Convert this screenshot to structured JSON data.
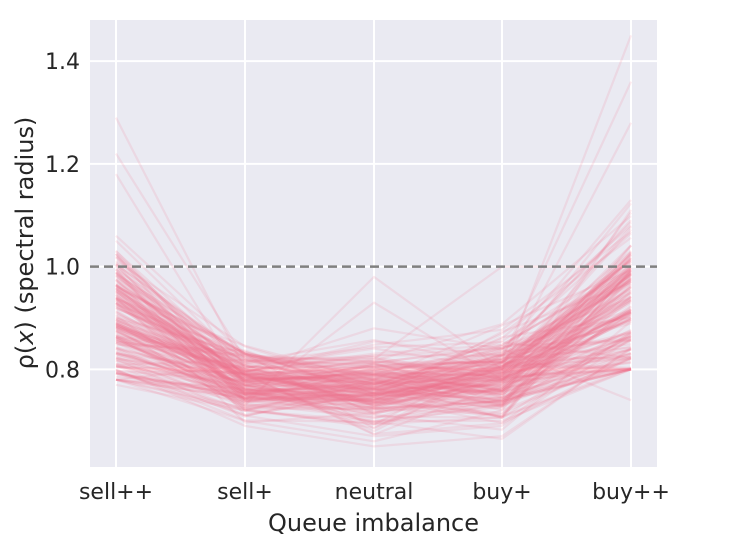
{
  "chart_data": {
    "type": "line",
    "title": "",
    "xlabel": "Queue imbalance",
    "ylabel_pre": "ρ(",
    "ylabel_var": "x",
    "ylabel_post": ") (spectral radius)",
    "categories": [
      "sell++",
      "sell+",
      "neutral",
      "buy+",
      "buy++"
    ],
    "ylim": [
      0.61,
      1.48
    ],
    "yticks": [
      0.8,
      1.0,
      1.2,
      1.4
    ],
    "ytick_labels": [
      "0.8",
      "1.0",
      "1.2",
      "1.4"
    ],
    "reference_line": {
      "y": 1.0,
      "style": "dashed",
      "color": "#808080"
    },
    "grid": true,
    "background_color": "#eaeaf2",
    "line_color": "#f0748f",
    "line_opacity": 0.15,
    "series_count": 200,
    "series_typical": {
      "sell++": 0.9,
      "sell+": 0.78,
      "neutral": 0.76,
      "buy+": 0.78,
      "buy++": 0.93
    },
    "series_extremes": [
      [
        1.29,
        0.8,
        0.78,
        0.8,
        1.45
      ],
      [
        1.22,
        0.82,
        0.8,
        0.82,
        1.36
      ],
      [
        1.18,
        0.77,
        0.8,
        0.8,
        1.28
      ],
      [
        0.86,
        0.74,
        0.93,
        0.78,
        0.9
      ],
      [
        0.84,
        0.73,
        0.98,
        0.8,
        0.91
      ],
      [
        0.88,
        0.78,
        0.82,
        1.0,
        1.0
      ],
      [
        0.95,
        0.8,
        0.88,
        0.84,
        0.74
      ],
      [
        0.78,
        0.7,
        0.66,
        0.72,
        0.82
      ],
      [
        0.8,
        0.69,
        0.65,
        0.67,
        0.84
      ],
      [
        0.82,
        0.71,
        0.67,
        0.69,
        0.86
      ],
      [
        1.06,
        0.83,
        0.76,
        0.86,
        1.08
      ],
      [
        0.77,
        0.72,
        0.7,
        0.7,
        0.8
      ]
    ]
  }
}
